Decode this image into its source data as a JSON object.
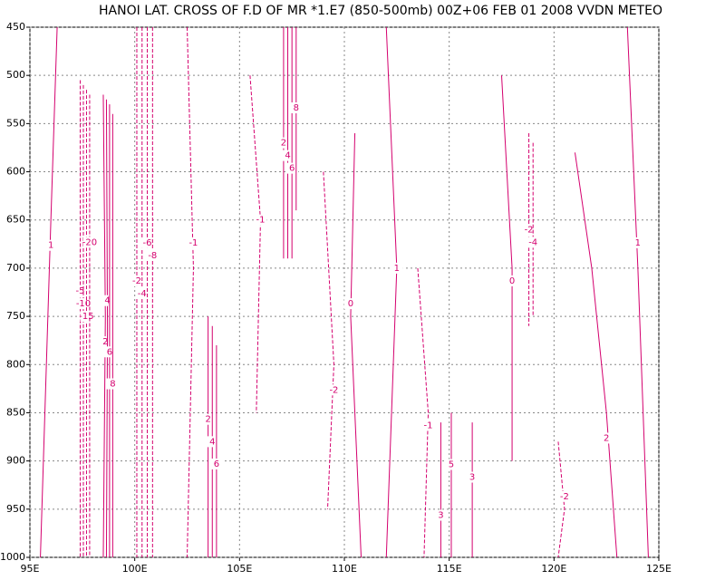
{
  "chart_data": {
    "type": "contour",
    "title": "HANOI LAT. CROSS OF F.D OF MR *1.E7 (850-500mb) 00Z+06 FEB 01 2008 VVDN METEO",
    "color": "#d4006e",
    "grid": true,
    "xlim": [
      95,
      125
    ],
    "xticks": [
      {
        "value": 95,
        "label": "95E"
      },
      {
        "value": 100,
        "label": "100E"
      },
      {
        "value": 105,
        "label": "105E"
      },
      {
        "value": 110,
        "label": "110E"
      },
      {
        "value": 115,
        "label": "115E"
      },
      {
        "value": 120,
        "label": "120E"
      },
      {
        "value": 125,
        "label": "125E"
      }
    ],
    "ylim": [
      1000,
      450
    ],
    "yticks": [
      450,
      500,
      550,
      600,
      650,
      700,
      750,
      800,
      850,
      900,
      950,
      1000
    ],
    "contours": [
      {
        "level": -5,
        "lon": [
          97.4,
          97.4,
          97.4
        ],
        "p": [
          505,
          750,
          1000
        ]
      },
      {
        "level": -10,
        "lon": [
          97.55,
          97.55,
          97.55
        ],
        "p": [
          510,
          750,
          1000
        ]
      },
      {
        "level": -15,
        "lon": [
          97.7,
          97.7,
          97.7
        ],
        "p": [
          515,
          750,
          1000
        ]
      },
      {
        "level": -20,
        "lon": [
          97.85,
          97.85,
          97.85
        ],
        "p": [
          520,
          660,
          1000
        ]
      },
      {
        "level": 2,
        "lon": [
          98.5,
          98.6,
          98.5
        ],
        "p": [
          520,
          750,
          1000
        ]
      },
      {
        "level": 4,
        "lon": [
          98.65,
          98.7,
          98.65
        ],
        "p": [
          525,
          760,
          1000
        ]
      },
      {
        "level": 6,
        "lon": [
          98.8,
          98.8,
          98.8
        ],
        "p": [
          530,
          800,
          1000
        ]
      },
      {
        "level": 8,
        "lon": [
          98.95,
          98.95,
          98.95
        ],
        "p": [
          540,
          820,
          1000
        ]
      },
      {
        "level": -2,
        "lon": [
          100.1,
          100.1,
          100.1
        ],
        "p": [
          450,
          700,
          1000
        ]
      },
      {
        "level": -4,
        "lon": [
          100.35,
          100.35,
          100.35
        ],
        "p": [
          450,
          700,
          1000
        ]
      },
      {
        "level": -6,
        "lon": [
          100.6,
          100.6,
          100.6
        ],
        "p": [
          450,
          700,
          1000
        ]
      },
      {
        "level": -8,
        "lon": [
          100.85,
          100.85,
          100.85
        ],
        "p": [
          450,
          700,
          1000
        ]
      },
      {
        "level": 2,
        "lon": [
          107.1,
          107.1,
          107.1
        ],
        "p": [
          450,
          570,
          690
        ]
      },
      {
        "level": 4,
        "lon": [
          107.3,
          107.3,
          107.3
        ],
        "p": [
          450,
          570,
          690
        ]
      },
      {
        "level": 6,
        "lon": [
          107.5,
          107.5,
          107.5
        ],
        "p": [
          450,
          570,
          690
        ]
      },
      {
        "level": 8,
        "lon": [
          107.7,
          107.7,
          107.7
        ],
        "p": [
          450,
          560,
          640
        ]
      },
      {
        "level": 2,
        "lon": [
          103.5,
          103.5,
          103.5
        ],
        "p": [
          750,
          870,
          1000
        ]
      },
      {
        "level": 4,
        "lon": [
          103.7,
          103.7,
          103.7
        ],
        "p": [
          760,
          880,
          1000
        ]
      },
      {
        "level": 6,
        "lon": [
          103.9,
          103.9,
          103.9
        ],
        "p": [
          780,
          890,
          1000
        ]
      },
      {
        "level": 3,
        "lon": [
          114.6,
          114.6,
          114.6
        ],
        "p": [
          860,
          930,
          1000
        ]
      },
      {
        "level": 5,
        "lon": [
          115.1,
          115.1,
          115.1
        ],
        "p": [
          850,
          930,
          1000
        ]
      },
      {
        "level": 3,
        "lon": [
          116.1,
          116.1,
          116.1
        ],
        "p": [
          860,
          930,
          1000
        ]
      },
      {
        "level": -2,
        "lon": [
          118.8,
          118.8,
          118.8
        ],
        "p": [
          560,
          660,
          760
        ]
      },
      {
        "level": -4,
        "lon": [
          119,
          119,
          119
        ],
        "p": [
          570,
          660,
          750
        ]
      },
      {
        "level": 1,
        "lon": [
          96.3,
          96,
          95.5
        ],
        "p": [
          450,
          650,
          1000
        ]
      },
      {
        "level": -1,
        "lon": [
          102.5,
          102.8,
          102.5
        ],
        "p": [
          450,
          700,
          1000
        ]
      },
      {
        "level": 0,
        "lon": [
          110.5,
          110.3,
          110.8
        ],
        "p": [
          560,
          750,
          1000
        ]
      },
      {
        "level": 1,
        "lon": [
          112,
          112.5,
          112
        ],
        "p": [
          450,
          700,
          1000
        ]
      },
      {
        "level": -1,
        "lon": [
          113.5,
          114,
          113.8
        ],
        "p": [
          700,
          850,
          1000
        ]
      },
      {
        "level": 2,
        "lon": [
          121,
          121.8,
          122.5,
          123
        ],
        "p": [
          580,
          700,
          850,
          1000
        ]
      },
      {
        "level": 1,
        "lon": [
          123.5,
          124,
          124.5
        ],
        "p": [
          450,
          700,
          1000
        ]
      },
      {
        "level": -2,
        "lon": [
          120.2,
          120.5,
          120.2
        ],
        "p": [
          880,
          950,
          1000
        ]
      },
      {
        "level": -1,
        "lon": [
          105.5,
          106,
          105.8
        ],
        "p": [
          500,
          650,
          850
        ]
      },
      {
        "level": 0,
        "lon": [
          117.5,
          118,
          118
        ],
        "p": [
          500,
          700,
          900
        ]
      },
      {
        "level": -2,
        "lon": [
          109,
          109.5,
          109.2
        ],
        "p": [
          600,
          800,
          950
        ]
      }
    ]
  }
}
